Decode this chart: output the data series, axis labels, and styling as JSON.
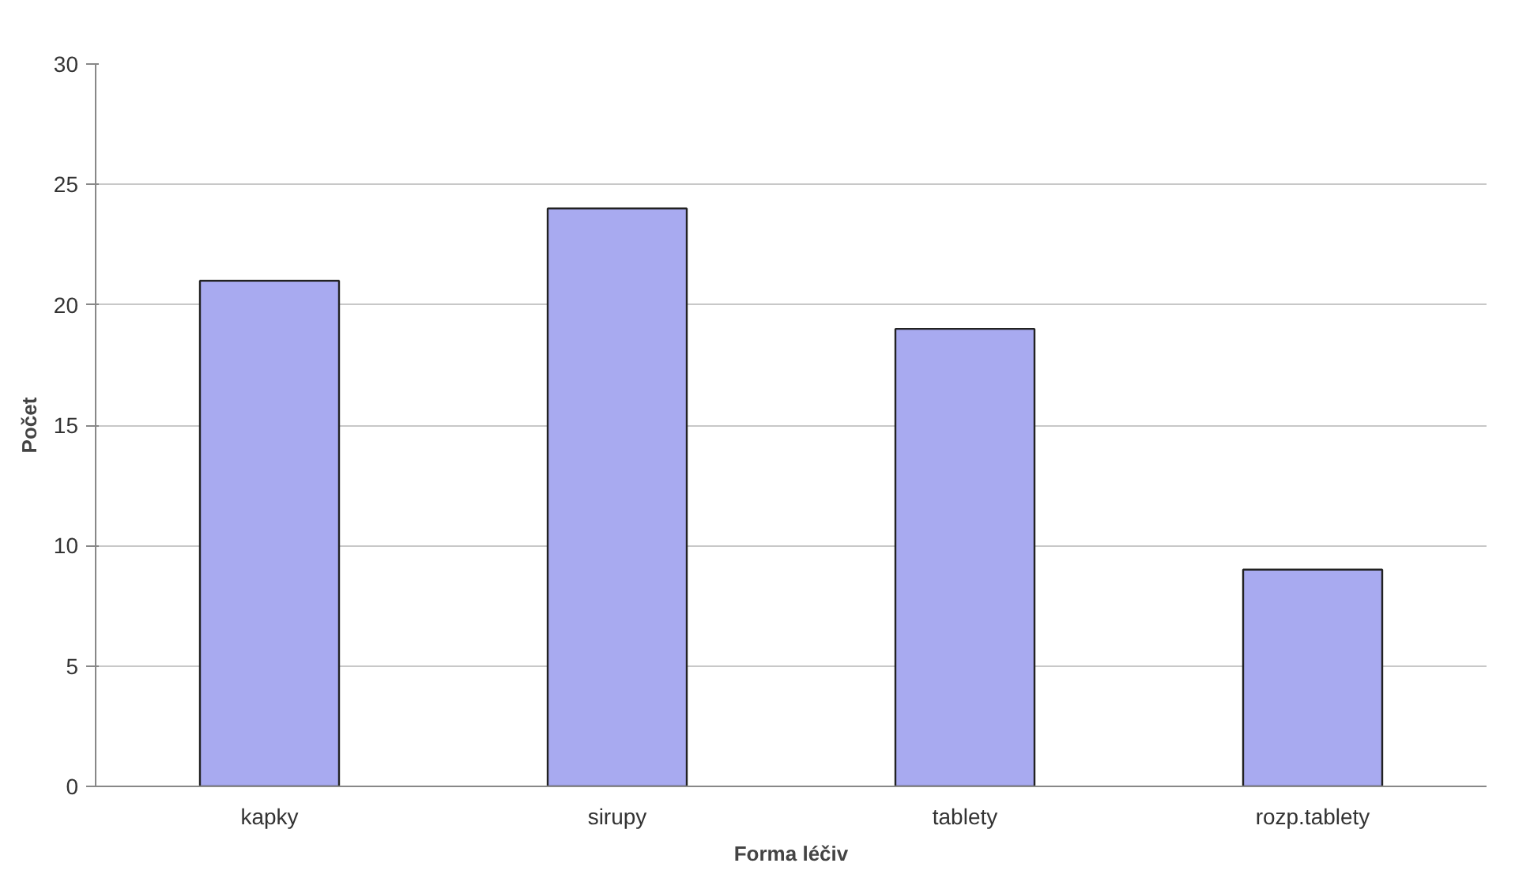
{
  "chart_data": {
    "type": "bar",
    "xlabel": "Forma léčiv",
    "ylabel": "Počet",
    "categories": [
      "kapky",
      "sirupy",
      "tablety",
      "rozp.tablety"
    ],
    "values": [
      21,
      24,
      19,
      9
    ],
    "color": "#a8aaf0",
    "ylim": [
      0,
      30
    ],
    "yticks": [
      0,
      5,
      10,
      15,
      20,
      25,
      30
    ],
    "grid": "y"
  }
}
